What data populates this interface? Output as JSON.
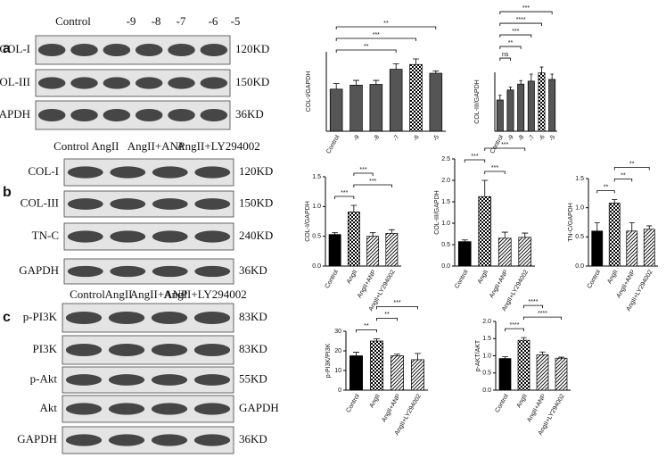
{
  "blots": [
    {
      "letter": "a",
      "columns": [
        "Control",
        "-9",
        "-8",
        "-7",
        "-6",
        "-5"
      ],
      "rows": [
        {
          "label": "COL-I",
          "size": "120KD"
        },
        {
          "label": "COL-III",
          "size": "150KD"
        },
        {
          "label": "GAPDH",
          "size": "36KD"
        }
      ]
    },
    {
      "letter": "b",
      "columns": [
        "Control",
        "AngII",
        "AngII+ANP",
        "AngII+LY294002"
      ],
      "rows": [
        {
          "label": "COL-I",
          "size": "120KD"
        },
        {
          "label": "COL-III",
          "size": "150KD"
        },
        {
          "label": "TN-C",
          "size": "240KD"
        },
        {
          "label": "GAPDH",
          "size": "36KD"
        }
      ]
    },
    {
      "letter": "c",
      "columns": [
        "Control",
        "AngII",
        "AngII+ANP",
        "AngII+LY294002"
      ],
      "rows": [
        {
          "label": "p-PI3K",
          "size": "83KD"
        },
        {
          "label": "PI3K",
          "size": "83KD"
        },
        {
          "label": "p-Akt",
          "size": "55KD"
        },
        {
          "label": "Akt",
          "size": "GAPDH"
        },
        {
          "label": "GAPDH",
          "size": "36KD"
        }
      ]
    }
  ],
  "chart_data": [
    {
      "type": "bar",
      "ylabel": "COL-I/GAPDH",
      "categories": [
        "Control",
        "-9",
        "-8",
        "-7",
        "-6",
        "-5"
      ],
      "values": [
        0.53,
        0.58,
        0.59,
        0.78,
        0.84,
        0.73
      ],
      "errors": [
        0.07,
        0.06,
        0.05,
        0.07,
        0.07,
        0.03
      ],
      "colors": [
        "#555555",
        "#555555",
        "#555555",
        "#555555",
        "#000000",
        "#555555"
      ],
      "patterns": [
        "solid",
        "solid",
        "solid",
        "solid",
        "checker",
        "solid"
      ],
      "ylim": [
        0,
        1
      ],
      "annotations": [
        {
          "text": "**",
          "between": [
            "Control",
            "-7"
          ]
        },
        {
          "text": "***",
          "between": [
            "Control",
            "-6"
          ]
        },
        {
          "text": "**",
          "between": [
            "Control",
            "-5"
          ]
        }
      ]
    },
    {
      "type": "bar",
      "ylabel": "COL-III/GAPDH",
      "categories": [
        "Control",
        "-9",
        "-8",
        "-7",
        "-6",
        "-5"
      ],
      "values": [
        0.53,
        0.7,
        0.8,
        0.85,
        0.99,
        0.88
      ],
      "errors": [
        0.08,
        0.05,
        0.06,
        0.12,
        0.1,
        0.09
      ],
      "colors": [
        "#555555",
        "#555555",
        "#555555",
        "#555555",
        "#000000",
        "#555555"
      ],
      "patterns": [
        "solid",
        "solid",
        "solid",
        "solid",
        "checker",
        "solid"
      ],
      "ylim": [
        0,
        1
      ],
      "annotations": [
        {
          "text": "ns",
          "between": [
            "Control",
            "-9"
          ]
        },
        {
          "text": "**",
          "between": [
            "Control",
            "-8"
          ]
        },
        {
          "text": "***",
          "between": [
            "Control",
            "-7"
          ]
        },
        {
          "text": "****",
          "between": [
            "Control",
            "-6"
          ]
        },
        {
          "text": "***",
          "between": [
            "Control",
            "-5"
          ]
        }
      ]
    },
    {
      "type": "bar",
      "ylabel": "COL-I/GAPDH",
      "categories": [
        "Control",
        "AngII",
        "AngII+ANP",
        "AngII+LY294002"
      ],
      "values": [
        0.53,
        0.91,
        0.5,
        0.55
      ],
      "errors": [
        0.03,
        0.11,
        0.06,
        0.06
      ],
      "colors": [
        "#000000",
        "#000000",
        "#000000",
        "#000000"
      ],
      "patterns": [
        "solid",
        "checker",
        "hatch",
        "hatch"
      ],
      "ylim": [
        0,
        1.5
      ],
      "yticks": [
        {
          "value": 0,
          "label": "0.0"
        },
        0.5,
        {
          "value": 1,
          "label": "1.0"
        },
        1.5
      ],
      "annotations": [
        {
          "text": "***",
          "between": [
            "Control",
            "AngII"
          ]
        },
        {
          "text": "***",
          "between": [
            "AngII",
            "AngII+LY294002"
          ]
        },
        {
          "text": "***",
          "between": [
            "AngII",
            "AngII+ANP"
          ]
        }
      ]
    },
    {
      "type": "bar",
      "ylabel": "COL-III/GAPDH",
      "categories": [
        "Control",
        "AngII",
        "AngII+ANP",
        "AngII+LY294002"
      ],
      "values": [
        0.57,
        1.62,
        0.65,
        0.67
      ],
      "errors": [
        0.04,
        0.38,
        0.14,
        0.1
      ],
      "colors": [
        "#000000",
        "#000000",
        "#000000",
        "#000000"
      ],
      "patterns": [
        "solid",
        "checker",
        "hatch",
        "hatch"
      ],
      "ylim": [
        0,
        2.5
      ],
      "yticks": [
        {
          "value": 0,
          "label": "0.0"
        },
        0.5,
        {
          "value": 1,
          "label": "1.0"
        },
        1.5,
        {
          "value": 2,
          "label": "2.0"
        },
        2.5
      ],
      "annotations": [
        {
          "text": "***",
          "between": [
            "AngII",
            "AngII+ANP"
          ]
        },
        {
          "text": "***",
          "between": [
            "Control",
            "AngII"
          ]
        },
        {
          "text": "***",
          "between": [
            "AngII",
            "AngII+LY294002"
          ]
        }
      ]
    },
    {
      "type": "bar",
      "ylabel": "TN-C/GAPDH",
      "categories": [
        "Control",
        "AngII",
        "AngII+ANP",
        "AngII+LY294002"
      ],
      "values": [
        0.6,
        1.08,
        0.6,
        0.63
      ],
      "errors": [
        0.14,
        0.06,
        0.14,
        0.06
      ],
      "colors": [
        "#000000",
        "#000000",
        "#000000",
        "#000000"
      ],
      "patterns": [
        "solid",
        "checker",
        "hatch",
        "hatch"
      ],
      "ylim": [
        0,
        1.5
      ],
      "yticks": [
        {
          "value": 0,
          "label": "0.0"
        },
        0.5,
        {
          "value": 1,
          "label": "1.0"
        },
        1.5
      ],
      "annotations": [
        {
          "text": "**",
          "between": [
            "Control",
            "AngII"
          ]
        },
        {
          "text": "**",
          "between": [
            "AngII",
            "AngII+ANP"
          ]
        },
        {
          "text": "**",
          "between": [
            "AngII",
            "AngII+LY294002"
          ]
        }
      ]
    },
    {
      "type": "bar",
      "ylabel": "p-PI3K/PI3K",
      "categories": [
        "Control",
        "AngII",
        "AngII+ANP",
        "AngII+LY294002"
      ],
      "values": [
        17.5,
        25,
        17.5,
        15.5
      ],
      "errors": [
        1.8,
        1.2,
        0.8,
        3.2
      ],
      "colors": [
        "#000000",
        "#000000",
        "#000000",
        "#000000"
      ],
      "patterns": [
        "solid",
        "checker",
        "hatch",
        "hatch"
      ],
      "ylim": [
        0,
        30
      ],
      "yticks": [
        0,
        10,
        20,
        30
      ],
      "annotations": [
        {
          "text": "**",
          "between": [
            "Control",
            "AngII"
          ]
        },
        {
          "text": "**",
          "between": [
            "AngII",
            "AngII+ANP"
          ]
        },
        {
          "text": "***",
          "between": [
            "AngII",
            "AngII+LY294002"
          ]
        }
      ]
    },
    {
      "type": "bar",
      "ylabel": "p-AKT/AKT",
      "categories": [
        "Control",
        "AngII",
        "AngII+ANP",
        "AngII+LY294002"
      ],
      "values": [
        0.92,
        1.45,
        1.03,
        0.93
      ],
      "errors": [
        0.05,
        0.08,
        0.08,
        0.03
      ],
      "colors": [
        "#000000",
        "#000000",
        "#000000",
        "#000000"
      ],
      "patterns": [
        "solid",
        "checker",
        "hatch",
        "hatch"
      ],
      "ylim": [
        0,
        2
      ],
      "yticks": [
        {
          "value": 0,
          "label": "0.0"
        },
        0.5,
        {
          "value": 1,
          "label": "1.0"
        },
        1.5,
        {
          "value": 2,
          "label": "2.0"
        }
      ],
      "annotations": [
        {
          "text": "****",
          "between": [
            "Control",
            "AngII"
          ]
        },
        {
          "text": "****",
          "between": [
            "AngII",
            "AngII+LY294002"
          ]
        },
        {
          "text": "****",
          "between": [
            "AngII",
            "AngII+ANP"
          ]
        }
      ]
    }
  ]
}
